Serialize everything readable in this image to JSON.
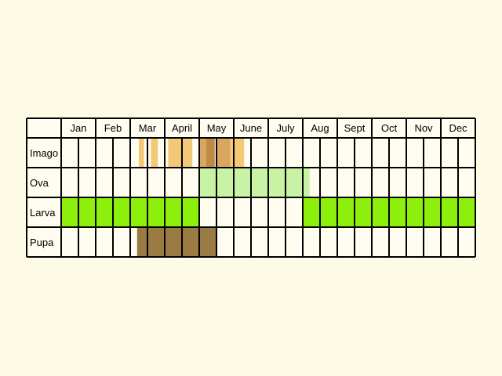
{
  "chart_data": {
    "type": "table",
    "months": [
      "Jan",
      "Feb",
      "Mar",
      "April",
      "May",
      "June",
      "July",
      "Aug",
      "Sept",
      "Oct",
      "Nov",
      "Dec"
    ],
    "subdivisions_per_month": 2,
    "rows": [
      {
        "label": "Imago",
        "periods": [
          {
            "start": 3.25,
            "end": 3.4,
            "color": "#f3c978"
          },
          {
            "start": 3.6,
            "end": 3.8,
            "color": "#f3c978"
          },
          {
            "start": 4.1,
            "end": 4.8,
            "color": "#f3c978"
          },
          {
            "start": 5.0,
            "end": 5.2,
            "color": "#d9a660"
          },
          {
            "start": 5.2,
            "end": 5.45,
            "color": "#c08a45"
          },
          {
            "start": 5.5,
            "end": 5.7,
            "color": "#c08a45"
          },
          {
            "start": 5.5,
            "end": 5.9,
            "color": "#d9a660"
          },
          {
            "start": 5.9,
            "end": 6.3,
            "color": "#f3c978"
          }
        ]
      },
      {
        "label": "Ova",
        "periods": [
          {
            "start": 5.0,
            "end": 8.2,
            "color": "#c8f2a4"
          }
        ]
      },
      {
        "label": "Larva",
        "periods": [
          {
            "start": 1.0,
            "end": 5.0,
            "color": "#8cf00c"
          },
          {
            "start": 8.0,
            "end": 13.0,
            "color": "#8cf00c"
          }
        ]
      },
      {
        "label": "Pupa",
        "periods": [
          {
            "start": 3.2,
            "end": 5.5,
            "color": "#9b7b44"
          }
        ]
      }
    ]
  },
  "colors": {
    "background": "#fdfbe6",
    "cell": "#fffdf0",
    "grid": "#000000"
  }
}
